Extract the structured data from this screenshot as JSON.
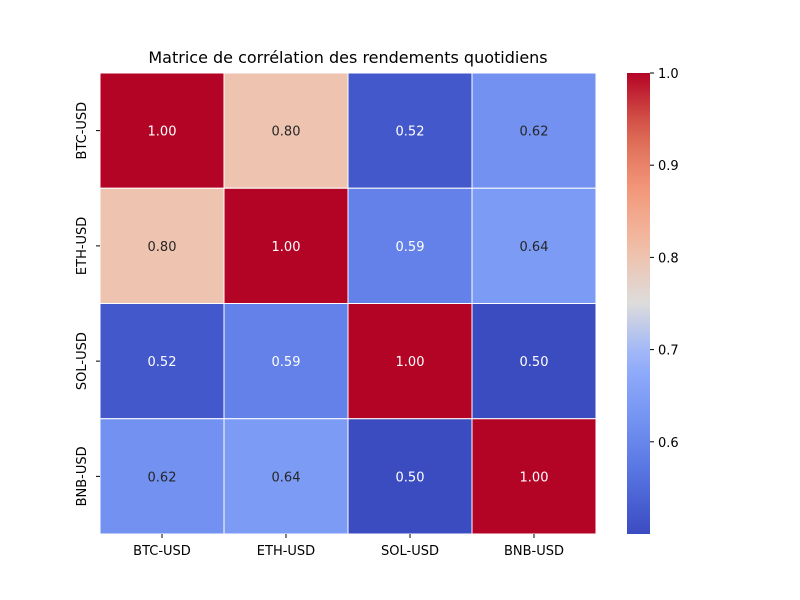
{
  "chart_data": {
    "type": "heatmap",
    "title": "Matrice de corrélation des rendements quotidiens",
    "xlabel": "",
    "ylabel": "",
    "x_categories": [
      "BTC-USD",
      "ETH-USD",
      "SOL-USD",
      "BNB-USD"
    ],
    "y_categories": [
      "BTC-USD",
      "ETH-USD",
      "SOL-USD",
      "BNB-USD"
    ],
    "values": [
      [
        1.0,
        0.8,
        0.52,
        0.62
      ],
      [
        0.8,
        1.0,
        0.59,
        0.64
      ],
      [
        0.52,
        0.59,
        1.0,
        0.5
      ],
      [
        0.62,
        0.64,
        0.5,
        1.0
      ]
    ],
    "value_format": "0.00",
    "colormap": "coolwarm",
    "vmin": 0.5,
    "vmax": 1.0,
    "colorbar": {
      "ticks": [
        0.6,
        0.7,
        0.8,
        0.9,
        1.0
      ],
      "tick_labels": [
        "0.6",
        "0.7",
        "0.8",
        "0.9",
        "1.0"
      ]
    },
    "grid": false,
    "cell_border_color": "#ffffff"
  }
}
